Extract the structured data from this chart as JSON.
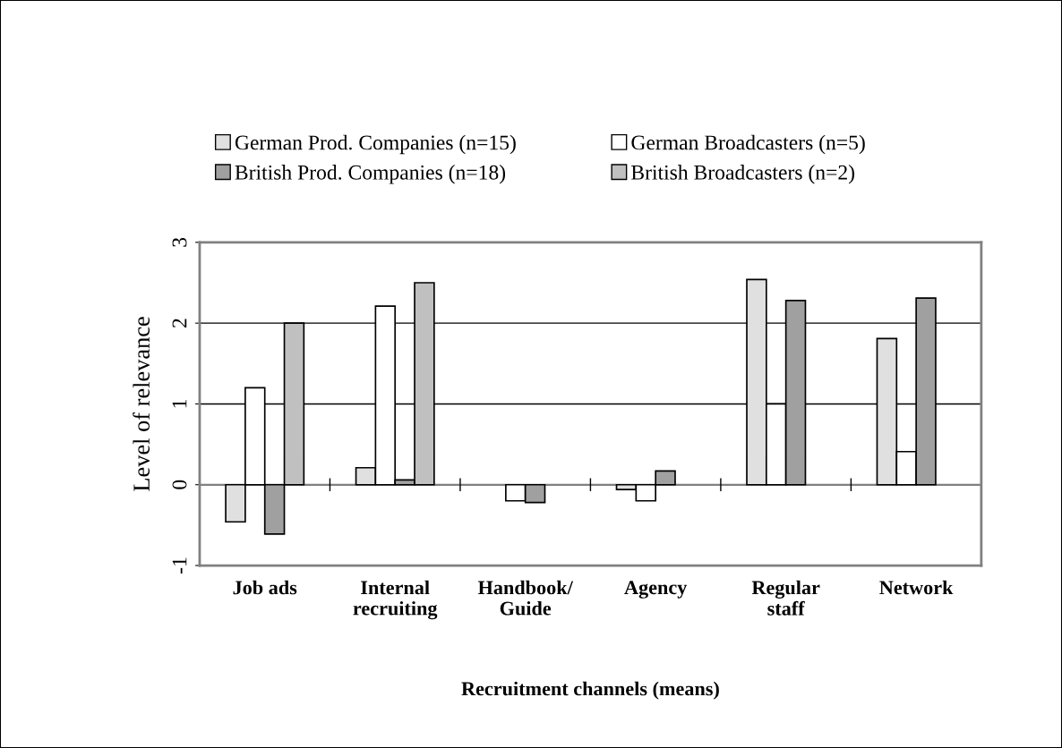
{
  "chart_data": {
    "type": "bar",
    "xlabel": "Recruitment channels (means)",
    "ylabel": "Level of relevance",
    "categories": [
      "Job ads",
      "Internal\nrecruiting",
      "Handbook/\nGuide",
      "Agency",
      "Regular\nstaff",
      "Network"
    ],
    "series": [
      {
        "name": "German Prod. Companies (n=15)",
        "color": "#e0e0e0",
        "values": [
          -0.46,
          0.21,
          null,
          -0.06,
          2.54,
          1.81
        ]
      },
      {
        "name": "German Broadcasters (n=5)",
        "color": "#ffffff",
        "values": [
          1.2,
          2.21,
          -0.2,
          -0.2,
          1.0,
          0.41
        ]
      },
      {
        "name": "British Prod. Companies (n=18)",
        "color": "#a0a0a0",
        "values": [
          -0.61,
          0.06,
          -0.22,
          0.17,
          2.28,
          2.31
        ]
      },
      {
        "name": "British Broadcasters (n=2)",
        "color": "#c0c0c0",
        "values": [
          2.0,
          2.5,
          null,
          null,
          null,
          null
        ]
      }
    ],
    "ylim": [
      -1,
      3
    ],
    "yticks": [
      -1,
      0,
      1,
      2,
      3
    ],
    "grid": "y",
    "legend": "top"
  }
}
